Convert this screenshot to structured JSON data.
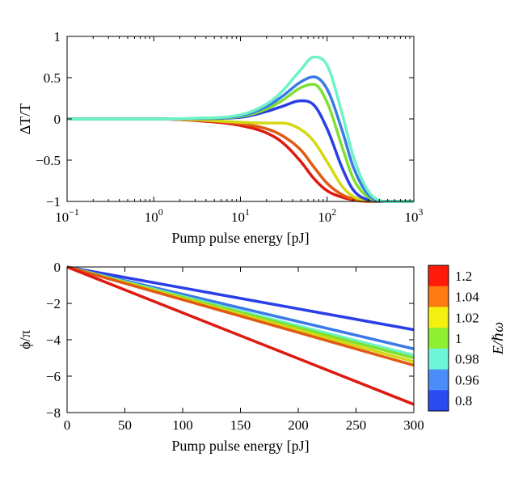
{
  "chart_data": [
    {
      "type": "line",
      "xscale": "log",
      "xlim": [
        0.1,
        1000
      ],
      "ylim": [
        -1,
        1
      ],
      "xlabel": "Pump pulse energy [pJ]",
      "ylabel": "ΔT/T",
      "xticks": [
        0.1,
        1,
        10,
        100,
        1000
      ],
      "xtick_labels": [
        {
          "base": "10",
          "exp": "−1"
        },
        {
          "base": "10",
          "exp": "0"
        },
        {
          "base": "10",
          "exp": "1"
        },
        {
          "base": "10",
          "exp": "2"
        },
        {
          "base": "10",
          "exp": "3"
        }
      ],
      "yticks": [
        -1,
        -0.5,
        0,
        0.5,
        1
      ],
      "ytick_labels": [
        "−1",
        "−0.5",
        "0",
        "0.5",
        "1"
      ],
      "grid": false,
      "x": [
        0.1,
        1,
        3,
        10,
        20,
        30,
        50,
        70,
        100,
        150,
        200,
        300,
        500,
        1000
      ],
      "series": [
        {
          "color": "#dd1a10",
          "values": [
            0,
            0,
            -0.02,
            -0.08,
            -0.17,
            -0.28,
            -0.52,
            -0.72,
            -0.87,
            -0.95,
            -0.98,
            -1,
            -1,
            -1
          ]
        },
        {
          "color": "#e05a12",
          "values": [
            0,
            0,
            -0.015,
            -0.06,
            -0.12,
            -0.2,
            -0.38,
            -0.58,
            -0.78,
            -0.92,
            -0.97,
            -1,
            -1,
            -1
          ]
        },
        {
          "color": "#d4d812",
          "values": [
            0,
            0,
            -0.01,
            -0.04,
            -0.05,
            -0.05,
            -0.13,
            -0.27,
            -0.52,
            -0.82,
            -0.94,
            -0.99,
            -1,
            -1
          ]
        },
        {
          "color": "#2a3ee8",
          "values": [
            0,
            0,
            0.003,
            0.02,
            0.09,
            0.15,
            0.22,
            0.17,
            -0.12,
            -0.6,
            -0.86,
            -0.98,
            -1,
            -1
          ]
        },
        {
          "color": "#80e030",
          "values": [
            0,
            0,
            0.005,
            0.03,
            0.12,
            0.22,
            0.38,
            0.42,
            0.2,
            -0.35,
            -0.72,
            -0.95,
            -1,
            -1
          ]
        },
        {
          "color": "#3a7ae8",
          "values": [
            0,
            0,
            0.006,
            0.04,
            0.15,
            0.27,
            0.45,
            0.51,
            0.36,
            -0.15,
            -0.58,
            -0.92,
            -1,
            -1
          ]
        },
        {
          "color": "#6ef2c8",
          "values": [
            0,
            0,
            0.008,
            0.05,
            0.18,
            0.33,
            0.6,
            0.75,
            0.65,
            0.05,
            -0.45,
            -0.88,
            -1,
            -1
          ]
        }
      ]
    },
    {
      "type": "line",
      "xlim": [
        0,
        300
      ],
      "ylim": [
        -8,
        0
      ],
      "xlabel": "Pump pulse energy [pJ]",
      "ylabel": "ϕ/π",
      "xticks": [
        0,
        50,
        100,
        150,
        200,
        250,
        300
      ],
      "xtick_labels": [
        "0",
        "50",
        "100",
        "150",
        "200",
        "250",
        "300"
      ],
      "yticks": [
        0,
        -2,
        -4,
        -6,
        -8
      ],
      "ytick_labels": [
        "0",
        "−2",
        "−4",
        "−6",
        "−8"
      ],
      "grid": false,
      "series": [
        {
          "color": "#2a3ee8",
          "x": [
            0,
            300
          ],
          "y": [
            0,
            -3.45
          ]
        },
        {
          "color": "#3a7ae8",
          "x": [
            0,
            300
          ],
          "y": [
            0,
            -4.5
          ]
        },
        {
          "color": "#6ef2c8",
          "x": [
            0,
            300
          ],
          "y": [
            0,
            -4.85
          ]
        },
        {
          "color": "#80e030",
          "x": [
            0,
            300
          ],
          "y": [
            0,
            -5.0
          ]
        },
        {
          "color": "#d4d812",
          "x": [
            0,
            300
          ],
          "y": [
            0,
            -5.2
          ]
        },
        {
          "color": "#e05a12",
          "x": [
            0,
            300
          ],
          "y": [
            0,
            -5.4
          ]
        },
        {
          "color": "#dd1a10",
          "x": [
            0,
            300
          ],
          "y": [
            0,
            -7.55
          ]
        }
      ]
    }
  ],
  "colorbar": {
    "label": "E/ℏω",
    "entries": [
      {
        "label": "1.2",
        "color": "#ff1a0a"
      },
      {
        "label": "1.04",
        "color": "#ff7a10"
      },
      {
        "label": "1.02",
        "color": "#f4f010"
      },
      {
        "label": "1",
        "color": "#8ef030"
      },
      {
        "label": "0.98",
        "color": "#6ef6d8"
      },
      {
        "label": "0.96",
        "color": "#4a8cf8"
      },
      {
        "label": "0.8",
        "color": "#2a4af2"
      }
    ]
  }
}
